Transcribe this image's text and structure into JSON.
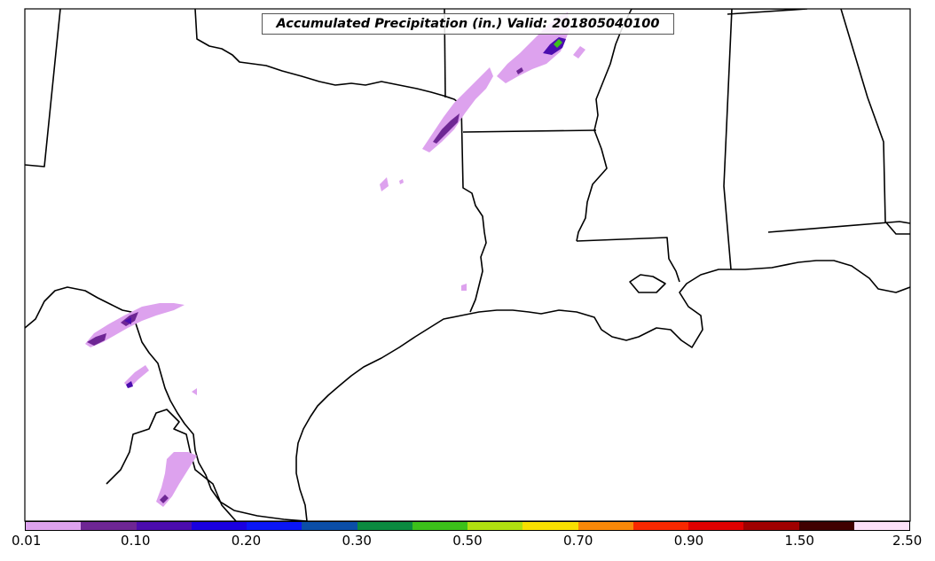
{
  "title": "Accumulated Precipitation (in.) Valid: 201805040100",
  "colorbar": {
    "colors": [
      "#dda2ee",
      "#6e2694",
      "#4b0cae",
      "#1a00e0",
      "#0a16f5",
      "#0b4ea8",
      "#0b8a40",
      "#3cc01a",
      "#b0e010",
      "#f8e000",
      "#f88808",
      "#f82800",
      "#e00000",
      "#a00000",
      "#400000",
      "#fbe0f8"
    ],
    "labels": [
      "0.01",
      "0.10",
      "0.20",
      "0.30",
      "0.50",
      "0.70",
      "0.90",
      "1.50",
      "2.50"
    ]
  },
  "colors": {
    "precip_light": "#dda2ee",
    "precip_medium": "#6e2694",
    "precip_dark": "#4b0cae",
    "precip_green": "#3cc01a",
    "boundary": "#000000"
  }
}
